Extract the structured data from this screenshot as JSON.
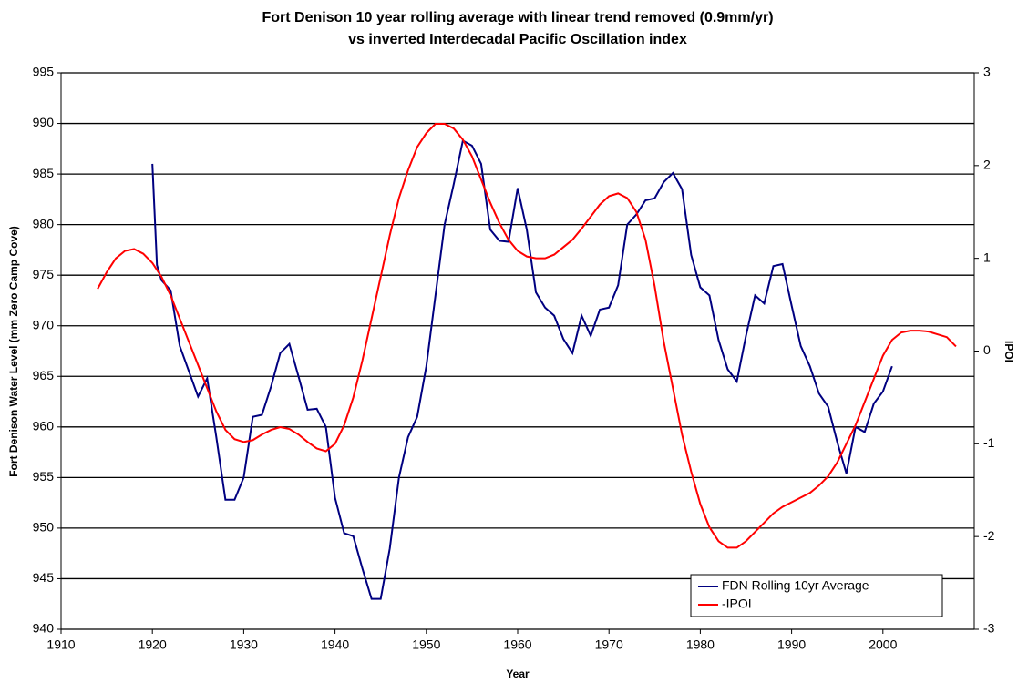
{
  "chart_data": {
    "type": "line",
    "title": "Fort Denison 10 year rolling average with linear trend removed (0.9mm/yr)",
    "subtitle": "vs inverted Interdecadal Pacific Oscillation index",
    "x_label": "Year",
    "y_label": "Fort Denison Water Level (mm Zero Camp Cove)",
    "y2_label": "IPOI",
    "xlim": [
      1910,
      2010
    ],
    "xticks": [
      1910,
      1920,
      1930,
      1940,
      1950,
      1960,
      1970,
      1980,
      1990,
      2000
    ],
    "ylim": [
      940,
      995
    ],
    "yticks": [
      940,
      945,
      950,
      955,
      960,
      965,
      970,
      975,
      980,
      985,
      990,
      995
    ],
    "y2lim": [
      -3,
      3
    ],
    "y2ticks": [
      -3,
      -2,
      -1,
      0,
      1,
      2,
      3
    ],
    "grid": true,
    "legend": "lower right",
    "series": [
      {
        "name": "FDN Rolling 10yr Average",
        "color": "#000080",
        "x": [
          1920,
          1920.5,
          1921,
          1922,
          1923,
          1924,
          1925,
          1926,
          1927,
          1928,
          1929,
          1930,
          1931,
          1932,
          1933,
          1934,
          1935,
          1936,
          1937,
          1938,
          1939,
          1940,
          1941,
          1942,
          1943,
          1944,
          1945,
          1946,
          1947,
          1948,
          1949,
          1950,
          1951,
          1952,
          1953,
          1954,
          1955,
          1956,
          1957,
          1958,
          1959,
          1960,
          1961,
          1962,
          1963,
          1964,
          1965,
          1966,
          1967,
          1968,
          1969,
          1970,
          1971,
          1972,
          1973,
          1974,
          1975,
          1976,
          1977,
          1978,
          1979,
          1980,
          1981,
          1982,
          1983,
          1984,
          1985,
          1986,
          1987,
          1988,
          1989,
          1990,
          1991,
          1992,
          1993,
          1994,
          1995,
          1996,
          1997,
          1998,
          1999,
          2000,
          2001
        ],
        "values": [
          986,
          976,
          974.5,
          973.5,
          968,
          965.5,
          963,
          964.8,
          959,
          952.8,
          952.8,
          955,
          961,
          961.2,
          964,
          967.3,
          968.2,
          965,
          961.7,
          961.8,
          960,
          953,
          949.5,
          949.2,
          946,
          943,
          943,
          948,
          955,
          959,
          961,
          966,
          973,
          980,
          984,
          988.3,
          987.8,
          986,
          979.5,
          978.4,
          978.3,
          983.6,
          979.5,
          973.3,
          971.8,
          971,
          968.7,
          967.3,
          971,
          969,
          971.6,
          971.8,
          974,
          980,
          981,
          982.4,
          982.6,
          984.2,
          985.1,
          983.5,
          977,
          973.8,
          973,
          968.6,
          965.7,
          964.5,
          969,
          973,
          972.2,
          975.9,
          976.1,
          972,
          968,
          966,
          963.3,
          962,
          958.5,
          955.4,
          960,
          959.5,
          962.3,
          963.5,
          966
        ]
      },
      {
        "name": "-IPOI",
        "color": "#ff0000",
        "axis": "y2",
        "x": [
          1914,
          1915,
          1916,
          1917,
          1918,
          1919,
          1920,
          1921,
          1922,
          1923,
          1924,
          1925,
          1926,
          1927,
          1928,
          1929,
          1930,
          1931,
          1932,
          1933,
          1934,
          1935,
          1936,
          1937,
          1938,
          1939,
          1940,
          1941,
          1942,
          1943,
          1944,
          1945,
          1946,
          1947,
          1948,
          1949,
          1950,
          1951,
          1952,
          1953,
          1954,
          1955,
          1956,
          1957,
          1958,
          1959,
          1960,
          1961,
          1962,
          1963,
          1964,
          1965,
          1966,
          1967,
          1968,
          1969,
          1970,
          1971,
          1972,
          1973,
          1974,
          1975,
          1976,
          1977,
          1978,
          1979,
          1980,
          1981,
          1982,
          1983,
          1984,
          1985,
          1986,
          1987,
          1988,
          1989,
          1990,
          1991,
          1992,
          1993,
          1994,
          1995,
          1996,
          1997,
          1998,
          1999,
          2000,
          2001,
          2002,
          2003,
          2004,
          2005,
          2006,
          2007,
          2008
        ],
        "values": [
          0.67,
          0.85,
          1.0,
          1.08,
          1.1,
          1.05,
          0.95,
          0.8,
          0.6,
          0.35,
          0.1,
          -0.15,
          -0.4,
          -0.65,
          -0.85,
          -0.95,
          -0.98,
          -0.96,
          -0.9,
          -0.85,
          -0.82,
          -0.84,
          -0.9,
          -0.98,
          -1.05,
          -1.08,
          -1.0,
          -0.8,
          -0.5,
          -0.1,
          0.35,
          0.8,
          1.25,
          1.65,
          1.95,
          2.2,
          2.35,
          2.45,
          2.45,
          2.4,
          2.28,
          2.1,
          1.85,
          1.6,
          1.38,
          1.2,
          1.08,
          1.02,
          1.0,
          1.0,
          1.04,
          1.12,
          1.2,
          1.32,
          1.45,
          1.58,
          1.67,
          1.7,
          1.65,
          1.5,
          1.2,
          0.7,
          0.1,
          -0.4,
          -0.9,
          -1.3,
          -1.65,
          -1.9,
          -2.05,
          -2.12,
          -2.12,
          -2.05,
          -1.95,
          -1.85,
          -1.75,
          -1.68,
          -1.63,
          -1.58,
          -1.53,
          -1.45,
          -1.35,
          -1.2,
          -1.0,
          -0.8,
          -0.55,
          -0.3,
          -0.05,
          0.12,
          0.2,
          0.22,
          0.22,
          0.21,
          0.18,
          0.15,
          0.05
        ]
      }
    ]
  }
}
